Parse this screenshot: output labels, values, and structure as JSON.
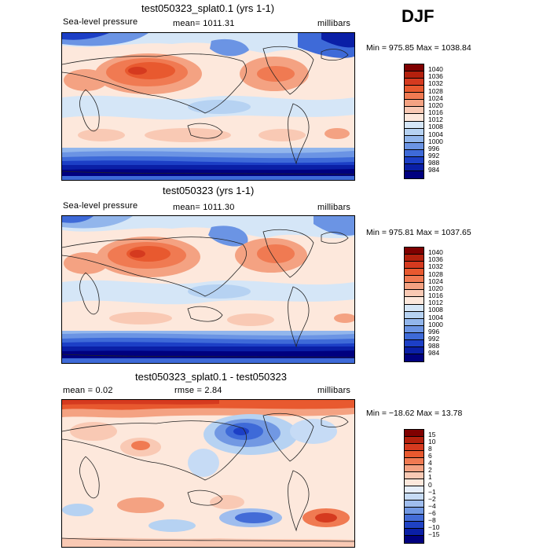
{
  "season": "DJF",
  "panels": [
    {
      "title": "test050323_splat0.1 (yrs 1-1)",
      "field": "Sea-level pressure",
      "stat": "mean=  1011.31",
      "units": "millibars",
      "minmax": "Min = 975.85 Max = 1038.84",
      "colorbar": {
        "labels": [
          "1040",
          "1036",
          "1032",
          "1028",
          "1024",
          "1020",
          "1016",
          "1012",
          "1008",
          "1004",
          "1000",
          "996",
          "992",
          "988",
          "984"
        ],
        "colors": [
          "#7f0000",
          "#b3200d",
          "#d53a1f",
          "#e8592f",
          "#f07a52",
          "#f4a282",
          "#f9c9b4",
          "#fde8dc",
          "#d5e6f7",
          "#b6d2f2",
          "#92b6ec",
          "#6b94e4",
          "#3e6ad8",
          "#1c3fc6",
          "#0a1fa6",
          "#00007f"
        ]
      },
      "chart_data": {
        "type": "heatmap",
        "title": "test050323_splat0.1 (yrs 1-1)",
        "variable": "Sea-level pressure",
        "units": "millibars",
        "mean": 1011.31,
        "min": 975.85,
        "max": 1038.84,
        "levels": [
          984,
          988,
          992,
          996,
          1000,
          1004,
          1008,
          1012,
          1016,
          1020,
          1024,
          1028,
          1032,
          1036,
          1040
        ]
      }
    },
    {
      "title": "test050323 (yrs 1-1)",
      "field": "Sea-level pressure",
      "stat": "mean=  1011.30",
      "units": "millibars",
      "minmax": "Min = 975.81 Max = 1037.65",
      "colorbar": {
        "labels": [
          "1040",
          "1036",
          "1032",
          "1028",
          "1024",
          "1020",
          "1016",
          "1012",
          "1008",
          "1004",
          "1000",
          "996",
          "992",
          "988",
          "984"
        ],
        "colors": [
          "#7f0000",
          "#b3200d",
          "#d53a1f",
          "#e8592f",
          "#f07a52",
          "#f4a282",
          "#f9c9b4",
          "#fde8dc",
          "#d5e6f7",
          "#b6d2f2",
          "#92b6ec",
          "#6b94e4",
          "#3e6ad8",
          "#1c3fc6",
          "#0a1fa6",
          "#00007f"
        ]
      },
      "chart_data": {
        "type": "heatmap",
        "title": "test050323 (yrs 1-1)",
        "variable": "Sea-level pressure",
        "units": "millibars",
        "mean": 1011.3,
        "min": 975.81,
        "max": 1037.65,
        "levels": [
          984,
          988,
          992,
          996,
          1000,
          1004,
          1008,
          1012,
          1016,
          1020,
          1024,
          1028,
          1032,
          1036,
          1040
        ]
      }
    },
    {
      "title": "test050323_splat0.1 - test050323",
      "stat_mean": "mean =    0.02",
      "stat_rmse": "rmse =    2.84",
      "units": "millibars",
      "minmax": "Min = −18.62 Max =   13.78",
      "colorbar": {
        "labels": [
          "15",
          "10",
          "8",
          "6",
          "4",
          "2",
          "1",
          "0",
          "−1",
          "−2",
          "−4",
          "−6",
          "−8",
          "−10",
          "−15"
        ],
        "colors": [
          "#7f0000",
          "#b3200d",
          "#d53a1f",
          "#e8592f",
          "#f07a52",
          "#f4a282",
          "#f9c9b4",
          "#fde8dc",
          "#e6eefa",
          "#c6dbf5",
          "#9fbdee",
          "#7198e3",
          "#436cd7",
          "#1f42c4",
          "#0a1fa6",
          "#00007f"
        ]
      },
      "chart_data": {
        "type": "heatmap",
        "title": "test050323_splat0.1 - test050323",
        "units": "millibars",
        "mean": 0.02,
        "rmse": 2.84,
        "min": -18.62,
        "max": 13.78,
        "levels": [
          -15,
          -10,
          -8,
          -6,
          -4,
          -2,
          -1,
          0,
          1,
          2,
          4,
          6,
          8,
          10,
          15
        ]
      }
    }
  ]
}
